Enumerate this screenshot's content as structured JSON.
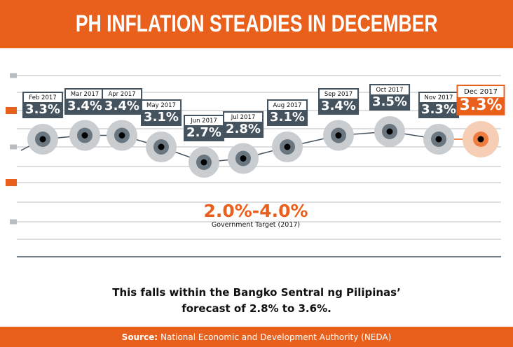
{
  "header": {
    "title": "PH INFLATION STEADIES IN DECEMBER"
  },
  "chart_data": {
    "type": "line",
    "title": "PH INFLATION STEADIES IN DECEMBER",
    "categories": [
      "Feb 2017",
      "Mar 2017",
      "Apr 2017",
      "May 2017",
      "Jun 2017",
      "Jul 2017",
      "Aug 2017",
      "Sep 2017",
      "Oct 2017",
      "Nov 2017",
      "Dec 2017"
    ],
    "values": [
      3.3,
      3.4,
      3.4,
      3.1,
      2.7,
      2.8,
      3.1,
      3.4,
      3.5,
      3.3,
      3.3
    ],
    "data_labels": [
      "3.3%",
      "3.4%",
      "3.4%",
      "3.1%",
      "2.7%",
      "2.8%",
      "3.1%",
      "3.4%",
      "3.5%",
      "3.3%",
      "3.3%"
    ],
    "highlight": "Dec 2017",
    "unit": "%",
    "grid": true,
    "colors": {
      "accent": "#E8601C",
      "line": "#45535F",
      "halo": "#C9CDD0",
      "ring": "#6B7780"
    }
  },
  "target": {
    "range": "2.0%-4.0%",
    "caption": "Government Target (2017)"
  },
  "note": {
    "line1": "This falls within the Bangko Sentral ng Pilipinas’",
    "line2": "forecast of 2.8% to 3.6%."
  },
  "footer": {
    "source_label": "Source:",
    "source_text": "National Economic and Development Authority (NEDA)"
  }
}
